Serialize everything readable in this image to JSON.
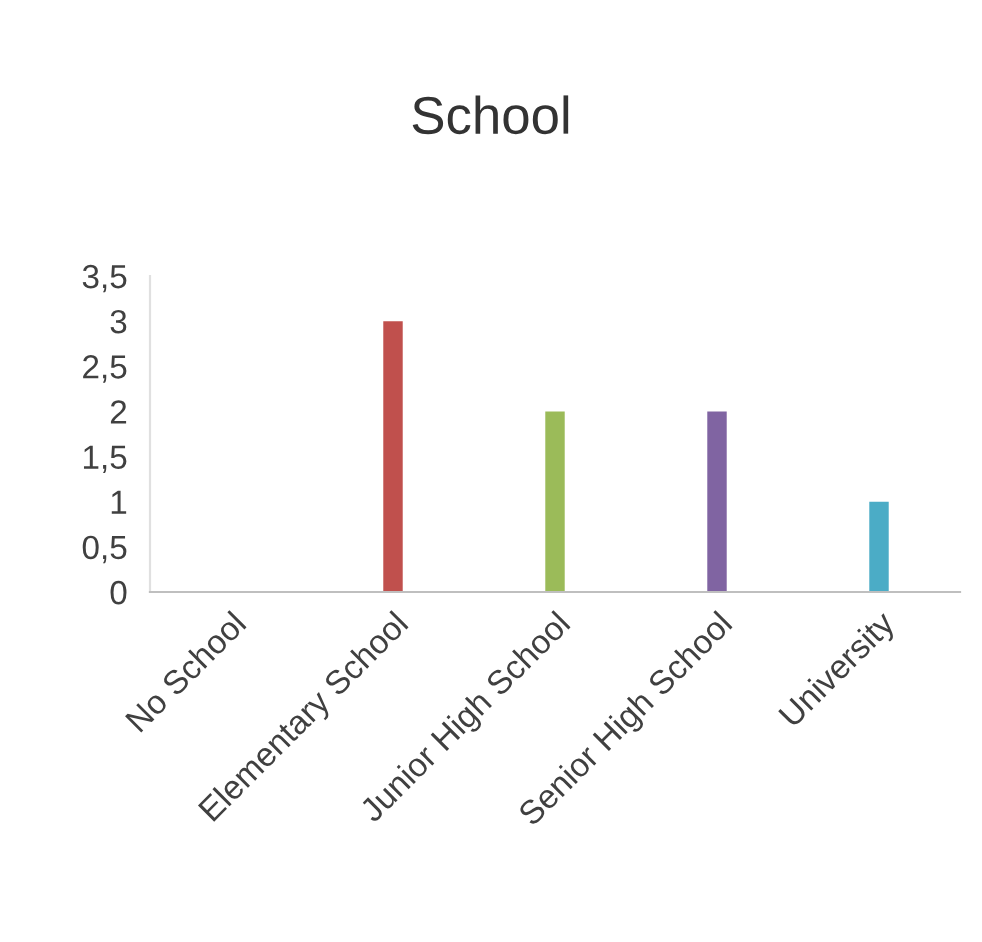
{
  "chart_data": {
    "type": "bar",
    "title": "School",
    "categories": [
      "No School",
      "Elementary School",
      "Junior High School",
      "Senior High School",
      "University"
    ],
    "values": [
      0,
      3,
      2,
      2,
      1
    ],
    "colors": [
      "#4f81bd",
      "#c0504d",
      "#9bbb59",
      "#8064a2",
      "#4bacc6"
    ],
    "ylim": [
      0,
      3.5
    ],
    "yticks": [
      0,
      {
        "value": 0.5,
        "label": "0,5"
      },
      1,
      {
        "value": 1.5,
        "label": "1,5"
      },
      2,
      {
        "value": 2.5,
        "label": "2,5"
      },
      3,
      {
        "value": 3.5,
        "label": "3,5"
      }
    ],
    "grid": false,
    "legend": false
  }
}
